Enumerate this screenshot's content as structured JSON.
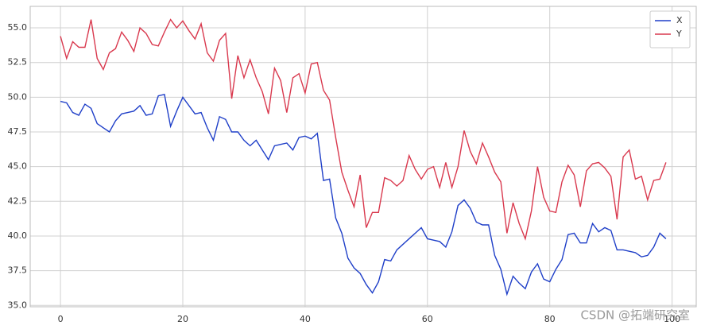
{
  "chart_data": {
    "type": "line",
    "x": [
      0,
      1,
      2,
      3,
      4,
      5,
      6,
      7,
      8,
      9,
      10,
      11,
      12,
      13,
      14,
      15,
      16,
      17,
      18,
      19,
      20,
      21,
      22,
      23,
      24,
      25,
      26,
      27,
      28,
      29,
      30,
      31,
      32,
      33,
      34,
      35,
      36,
      37,
      38,
      39,
      40,
      41,
      42,
      43,
      44,
      45,
      46,
      47,
      48,
      49,
      50,
      51,
      52,
      53,
      54,
      55,
      56,
      57,
      58,
      59,
      60,
      61,
      62,
      63,
      64,
      65,
      66,
      67,
      68,
      69,
      70,
      71,
      72,
      73,
      74,
      75,
      76,
      77,
      78,
      79,
      80,
      81,
      82,
      83,
      84,
      85,
      86,
      87,
      88,
      89,
      90,
      91,
      92,
      93,
      94,
      95,
      96,
      97,
      98,
      99
    ],
    "series": [
      {
        "name": "X",
        "color": "#1f3fc8",
        "values": [
          49.7,
          49.6,
          48.9,
          48.7,
          49.5,
          49.2,
          48.1,
          47.8,
          47.5,
          48.3,
          48.8,
          48.9,
          49.0,
          49.4,
          48.7,
          48.8,
          50.1,
          50.2,
          47.9,
          49.0,
          50.0,
          49.4,
          48.8,
          48.9,
          47.8,
          46.9,
          48.6,
          48.4,
          47.5,
          47.5,
          46.9,
          46.5,
          46.9,
          46.2,
          45.5,
          46.5,
          46.6,
          46.7,
          46.2,
          47.1,
          47.2,
          47.0,
          47.4,
          44.0,
          44.1,
          41.3,
          40.2,
          38.4,
          37.7,
          37.3,
          36.5,
          35.9,
          36.7,
          38.3,
          38.2,
          39.0,
          39.4,
          39.8,
          40.2,
          40.6,
          39.8,
          39.7,
          39.6,
          39.2,
          40.3,
          42.2,
          42.6,
          42.0,
          41.0,
          40.8,
          40.8,
          38.6,
          37.6,
          35.8,
          37.1,
          36.6,
          36.2,
          37.4,
          38.0,
          36.9,
          36.7,
          37.6,
          38.3,
          40.1,
          40.2,
          39.5,
          39.5,
          40.9,
          40.3,
          40.6,
          40.4,
          39.0,
          39.0,
          38.9,
          38.8,
          38.5,
          38.6,
          39.2,
          40.2,
          39.8
        ]
      },
      {
        "name": "Y",
        "color": "#d9394e",
        "values": [
          54.4,
          52.8,
          54.0,
          53.6,
          53.6,
          55.6,
          52.8,
          52.0,
          53.2,
          53.5,
          54.7,
          54.1,
          53.3,
          55.0,
          54.6,
          53.8,
          53.7,
          54.7,
          55.6,
          55.0,
          55.5,
          54.8,
          54.2,
          55.3,
          53.2,
          52.6,
          54.1,
          54.6,
          49.9,
          53.0,
          51.4,
          52.7,
          51.4,
          50.4,
          48.8,
          52.1,
          51.2,
          48.9,
          51.4,
          51.7,
          50.3,
          52.4,
          52.5,
          50.5,
          49.8,
          47.1,
          44.6,
          43.3,
          42.1,
          44.4,
          40.6,
          41.7,
          41.7,
          44.2,
          44.0,
          43.6,
          44.0,
          45.8,
          44.8,
          44.1,
          44.8,
          45.0,
          43.5,
          45.3,
          43.5,
          45.0,
          47.6,
          46.1,
          45.2,
          46.7,
          45.7,
          44.6,
          43.9,
          40.2,
          42.4,
          40.9,
          39.8,
          41.8,
          45.0,
          42.8,
          41.8,
          41.7,
          43.9,
          45.1,
          44.4,
          42.1,
          44.7,
          45.2,
          45.3,
          44.9,
          44.3,
          41.2,
          45.7,
          46.2,
          44.1,
          44.3,
          42.6,
          44.0,
          44.1,
          45.3
        ]
      }
    ],
    "xlim": [
      -4.95,
      103.95
    ],
    "xticks": [
      0,
      20,
      40,
      60,
      80,
      100
    ],
    "ylim": [
      34.9,
      56.55
    ],
    "yticks": [
      {
        "value": 35,
        "label": "35.0"
      },
      {
        "value": 37.5,
        "label": "37.5"
      },
      {
        "value": 40,
        "label": "40.0"
      },
      {
        "value": 42.5,
        "label": "42.5"
      },
      {
        "value": 45,
        "label": "45.0"
      },
      {
        "value": 47.5,
        "label": "47.5"
      },
      {
        "value": 50,
        "label": "50.0"
      },
      {
        "value": 52.5,
        "label": "52.5"
      },
      {
        "value": 55,
        "label": "55.0"
      }
    ],
    "grid": true,
    "legend": "upper-right",
    "watermark": "CSDN @拓端研究室"
  }
}
